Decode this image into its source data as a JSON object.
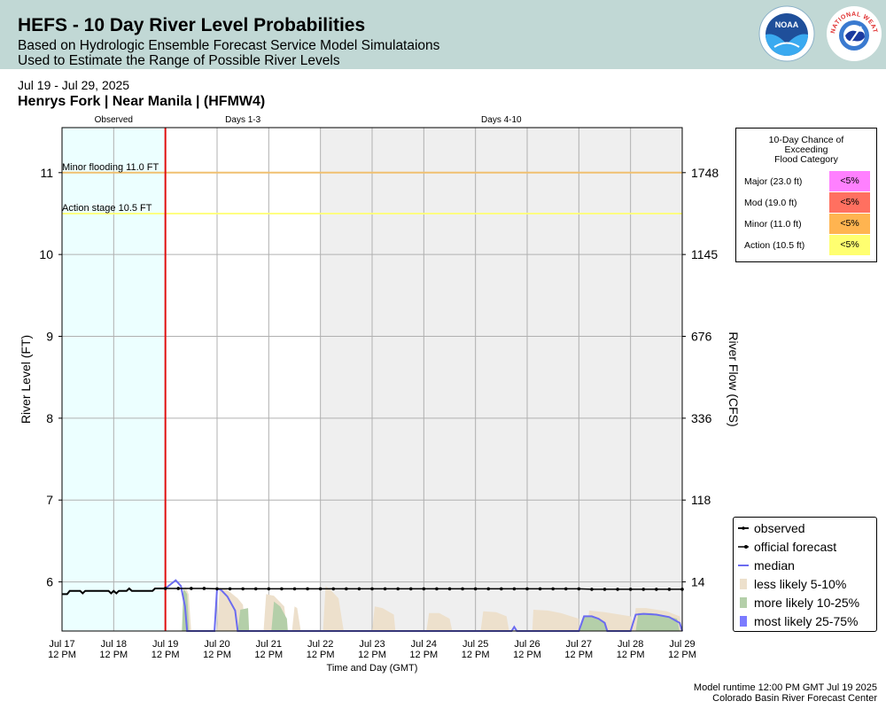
{
  "header": {
    "title": "HEFS - 10 Day River Level Probabilities",
    "subtitle1": "Based on Hydrologic Ensemble Forecast Service Model Simulataions",
    "subtitle2": "Used to Estimate the Range of Possible River Levels",
    "noaa_logo_text": "NOAA",
    "nws_logo_text": "NATIONAL WEATHER SERVICE"
  },
  "date_range": "Jul 19 - Jul 29, 2025",
  "station": "Henrys Fork | Near Manila | (HFMW4)",
  "flood_table": {
    "title_lines": [
      "10-Day Chance of",
      "Exceeding",
      "Flood Category"
    ],
    "rows": [
      {
        "label": "Major (23.0 ft)",
        "value": "<5%",
        "color": "#ff80ff"
      },
      {
        "label": "Mod (19.0 ft)",
        "value": "<5%",
        "color": "#ff7060"
      },
      {
        "label": "Minor (11.0 ft)",
        "value": "<5%",
        "color": "#ffb450"
      },
      {
        "label": "Action (10.5 ft)",
        "value": "<5%",
        "color": "#ffff70"
      }
    ]
  },
  "legend": [
    {
      "label": "observed",
      "kind": "line-dot",
      "color": "#000000"
    },
    {
      "label": "official forecast",
      "kind": "line-dot",
      "color": "#000000"
    },
    {
      "label": "median",
      "kind": "line",
      "color": "#6b6bf0"
    },
    {
      "label": "less likely 5-10%",
      "kind": "fill",
      "color": "#ede0cc"
    },
    {
      "label": "more likely 10-25%",
      "kind": "fill",
      "color": "#b4cfa9"
    },
    {
      "label": "most likely 25-75%",
      "kind": "fill",
      "color": "#7b7bff"
    }
  ],
  "footer": {
    "line1": "Model runtime 12:00 PM GMT Jul 19 2025",
    "line2": "Colorado Basin River Forecast Center"
  },
  "chart_data": {
    "type": "line",
    "xlabel": "Time and Day (GMT)",
    "ylabel": "River Level (FT)",
    "ylabel_right": "River Flow (CFS)",
    "x_range_days": [
      17.5,
      29.5
    ],
    "ylim": [
      5.4,
      11.55
    ],
    "y_ticks": [
      6,
      7,
      8,
      9,
      10,
      11
    ],
    "right_ticks": [
      {
        "level": 11,
        "label": "1748"
      },
      {
        "level": 10,
        "label": "1145"
      },
      {
        "level": 9,
        "label": "676"
      },
      {
        "level": 8,
        "label": "336"
      },
      {
        "level": 7,
        "label": "118"
      },
      {
        "level": 6,
        "label": "14"
      }
    ],
    "x_ticks": [
      {
        "day": 17.5,
        "label": [
          "Jul 17",
          "12 PM"
        ]
      },
      {
        "day": 18.5,
        "label": [
          "Jul 18",
          "12 PM"
        ]
      },
      {
        "day": 19.5,
        "label": [
          "Jul 19",
          "12 PM"
        ]
      },
      {
        "day": 20.5,
        "label": [
          "Jul 20",
          "12 PM"
        ]
      },
      {
        "day": 21.5,
        "label": [
          "Jul 21",
          "12 PM"
        ]
      },
      {
        "day": 22.5,
        "label": [
          "Jul 22",
          "12 PM"
        ]
      },
      {
        "day": 23.5,
        "label": [
          "Jul 23",
          "12 PM"
        ]
      },
      {
        "day": 24.5,
        "label": [
          "Jul 24",
          "12 PM"
        ]
      },
      {
        "day": 25.5,
        "label": [
          "Jul 25",
          "12 PM"
        ]
      },
      {
        "day": 26.5,
        "label": [
          "Jul 26",
          "12 PM"
        ]
      },
      {
        "day": 27.5,
        "label": [
          "Jul 27",
          "12 PM"
        ]
      },
      {
        "day": 28.5,
        "label": [
          "Jul 28",
          "12 PM"
        ]
      },
      {
        "day": 29.5,
        "label": [
          "Jul 29",
          "12 PM"
        ]
      }
    ],
    "periods": [
      {
        "label": "Observed",
        "start": 17.5,
        "end": 19.5,
        "color": "#ecffff"
      },
      {
        "label": "Days 1-3",
        "start": 19.5,
        "end": 22.5,
        "color": "#ffffff"
      },
      {
        "label": "Days 4-10",
        "start": 22.5,
        "end": 29.5,
        "color": "#efefef"
      }
    ],
    "forecast_start": 19.5,
    "thresholds": [
      {
        "label": "Minor flooding 11.0 FT",
        "level": 11.0,
        "color": "#f0c070"
      },
      {
        "label": "Action stage 10.5 FT",
        "level": 10.5,
        "color": "#ffff80"
      }
    ],
    "observed": [
      [
        17.5,
        5.85
      ],
      [
        17.6,
        5.85
      ],
      [
        17.65,
        5.89
      ],
      [
        17.85,
        5.89
      ],
      [
        17.9,
        5.86
      ],
      [
        17.95,
        5.89
      ],
      [
        18.4,
        5.89
      ],
      [
        18.45,
        5.86
      ],
      [
        18.5,
        5.89
      ],
      [
        18.55,
        5.86
      ],
      [
        18.6,
        5.89
      ],
      [
        18.75,
        5.89
      ],
      [
        18.8,
        5.92
      ],
      [
        18.85,
        5.89
      ],
      [
        19.25,
        5.89
      ],
      [
        19.3,
        5.92
      ],
      [
        19.5,
        5.92
      ]
    ],
    "official_forecast": [
      [
        19.5,
        5.92
      ],
      [
        19.75,
        5.92
      ],
      [
        20.0,
        5.92
      ],
      [
        20.25,
        5.92
      ],
      [
        20.5,
        5.915
      ],
      [
        20.75,
        5.915
      ],
      [
        21.0,
        5.915
      ],
      [
        21.25,
        5.915
      ],
      [
        21.5,
        5.915
      ],
      [
        21.75,
        5.915
      ],
      [
        22.0,
        5.915
      ],
      [
        22.25,
        5.915
      ],
      [
        22.5,
        5.915
      ],
      [
        22.75,
        5.915
      ],
      [
        23.0,
        5.915
      ],
      [
        23.25,
        5.915
      ],
      [
        23.5,
        5.915
      ],
      [
        23.75,
        5.915
      ],
      [
        24.0,
        5.915
      ],
      [
        24.25,
        5.915
      ],
      [
        24.5,
        5.915
      ],
      [
        24.75,
        5.915
      ],
      [
        25.0,
        5.915
      ],
      [
        25.25,
        5.915
      ],
      [
        25.5,
        5.915
      ],
      [
        25.75,
        5.915
      ],
      [
        26.0,
        5.915
      ],
      [
        26.25,
        5.915
      ],
      [
        26.5,
        5.915
      ],
      [
        26.75,
        5.915
      ],
      [
        27.0,
        5.915
      ],
      [
        27.25,
        5.915
      ],
      [
        27.5,
        5.915
      ],
      [
        27.75,
        5.91
      ],
      [
        28.0,
        5.91
      ],
      [
        28.25,
        5.91
      ],
      [
        28.5,
        5.91
      ],
      [
        28.75,
        5.91
      ],
      [
        29.0,
        5.91
      ],
      [
        29.25,
        5.91
      ],
      [
        29.5,
        5.91
      ]
    ],
    "median": [
      [
        19.5,
        5.92
      ],
      [
        19.7,
        6.02
      ],
      [
        19.8,
        5.95
      ],
      [
        19.88,
        5.7
      ],
      [
        19.92,
        5.4
      ],
      [
        20.45,
        5.4
      ],
      [
        20.5,
        5.92
      ],
      [
        20.58,
        5.9
      ],
      [
        20.7,
        5.82
      ],
      [
        20.85,
        5.65
      ],
      [
        20.9,
        5.4
      ],
      [
        26.2,
        5.4
      ],
      [
        26.25,
        5.45
      ],
      [
        26.3,
        5.4
      ],
      [
        27.5,
        5.4
      ],
      [
        27.6,
        5.58
      ],
      [
        27.75,
        5.58
      ],
      [
        27.88,
        5.55
      ],
      [
        28.0,
        5.5
      ],
      [
        28.05,
        5.4
      ],
      [
        28.5,
        5.4
      ],
      [
        28.6,
        5.6
      ],
      [
        28.75,
        5.61
      ],
      [
        29.0,
        5.6
      ],
      [
        29.25,
        5.57
      ],
      [
        29.45,
        5.5
      ],
      [
        29.5,
        5.4
      ]
    ],
    "less_likely": [
      [
        [
          19.85,
          5.4
        ],
        [
          19.88,
          5.95
        ],
        [
          19.95,
          5.85
        ],
        [
          20.0,
          5.4
        ]
      ],
      [
        [
          20.5,
          5.4
        ],
        [
          20.55,
          5.93
        ],
        [
          20.7,
          5.9
        ],
        [
          20.9,
          5.8
        ],
        [
          21.0,
          5.72
        ],
        [
          21.05,
          5.4
        ]
      ],
      [
        [
          21.4,
          5.4
        ],
        [
          21.45,
          5.85
        ],
        [
          21.6,
          5.83
        ],
        [
          21.8,
          5.7
        ],
        [
          21.85,
          5.4
        ]
      ],
      [
        [
          21.95,
          5.4
        ],
        [
          22.0,
          5.7
        ],
        [
          22.05,
          5.68
        ],
        [
          22.12,
          5.4
        ]
      ],
      [
        [
          22.55,
          5.4
        ],
        [
          22.6,
          5.95
        ],
        [
          22.7,
          5.9
        ],
        [
          22.85,
          5.8
        ],
        [
          22.95,
          5.4
        ]
      ],
      [
        [
          23.5,
          5.4
        ],
        [
          23.55,
          5.7
        ],
        [
          23.7,
          5.68
        ],
        [
          23.92,
          5.6
        ],
        [
          23.95,
          5.4
        ]
      ],
      [
        [
          24.55,
          5.4
        ],
        [
          24.6,
          5.62
        ],
        [
          24.8,
          5.62
        ],
        [
          25.0,
          5.55
        ],
        [
          25.05,
          5.4
        ]
      ],
      [
        [
          25.6,
          5.4
        ],
        [
          25.65,
          5.64
        ],
        [
          25.9,
          5.63
        ],
        [
          26.1,
          5.58
        ],
        [
          26.15,
          5.4
        ]
      ],
      [
        [
          26.6,
          5.4
        ],
        [
          26.62,
          5.66
        ],
        [
          26.9,
          5.65
        ],
        [
          27.15,
          5.62
        ],
        [
          27.5,
          5.55
        ],
        [
          27.5,
          5.4
        ]
      ],
      [
        [
          27.65,
          5.4
        ],
        [
          27.7,
          5.65
        ],
        [
          28.0,
          5.63
        ],
        [
          28.5,
          5.58
        ],
        [
          28.6,
          5.4
        ]
      ],
      [
        [
          28.55,
          5.4
        ],
        [
          28.6,
          5.68
        ],
        [
          28.8,
          5.68
        ],
        [
          29.2,
          5.64
        ],
        [
          29.45,
          5.58
        ],
        [
          29.5,
          5.4
        ]
      ]
    ],
    "more_likely": [
      [
        [
          19.82,
          5.4
        ],
        [
          19.85,
          5.92
        ],
        [
          19.92,
          5.85
        ],
        [
          19.96,
          5.4
        ]
      ],
      [
        [
          20.9,
          5.4
        ],
        [
          20.95,
          5.66
        ],
        [
          21.1,
          5.68
        ],
        [
          21.12,
          5.4
        ]
      ],
      [
        [
          21.55,
          5.4
        ],
        [
          21.6,
          5.76
        ],
        [
          21.72,
          5.7
        ],
        [
          21.85,
          5.55
        ],
        [
          21.87,
          5.4
        ]
      ],
      [
        [
          27.5,
          5.4
        ],
        [
          27.6,
          5.58
        ],
        [
          27.8,
          5.57
        ],
        [
          28.0,
          5.5
        ],
        [
          28.05,
          5.4
        ]
      ],
      [
        [
          28.6,
          5.4
        ],
        [
          28.65,
          5.62
        ],
        [
          28.9,
          5.62
        ],
        [
          29.2,
          5.58
        ],
        [
          29.4,
          5.55
        ],
        [
          29.45,
          5.4
        ]
      ]
    ]
  }
}
